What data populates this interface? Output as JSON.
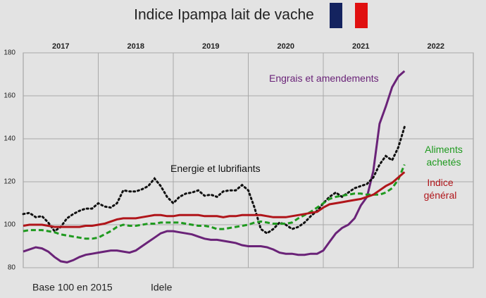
{
  "chart_data": {
    "type": "line",
    "title": "Indice Ipampa lait de vache",
    "notes": [
      "Base 100 en 2015",
      "Idele"
    ],
    "periods": [
      "2017",
      "2018",
      "2019",
      "2020",
      "2021",
      "2022"
    ],
    "x": [
      2017,
      2017.083,
      2017.167,
      2017.25,
      2017.333,
      2017.417,
      2017.5,
      2017.583,
      2017.667,
      2017.75,
      2017.833,
      2017.917,
      2018,
      2018.083,
      2018.167,
      2018.25,
      2018.333,
      2018.417,
      2018.5,
      2018.583,
      2018.667,
      2018.75,
      2018.833,
      2018.917,
      2019,
      2019.083,
      2019.167,
      2019.25,
      2019.333,
      2019.417,
      2019.5,
      2019.583,
      2019.667,
      2019.75,
      2019.833,
      2019.917,
      2020,
      2020.083,
      2020.167,
      2020.25,
      2020.333,
      2020.417,
      2020.5,
      2020.583,
      2020.667,
      2020.75,
      2020.833,
      2020.917,
      2021,
      2021.083,
      2021.167,
      2021.25,
      2021.333,
      2021.417,
      2021.5,
      2021.583,
      2021.667,
      2021.75,
      2021.833,
      2021.917,
      2022,
      2022.083
    ],
    "xlim": [
      2017,
      2023
    ],
    "xticks": [
      2018,
      2019,
      2020,
      2021,
      2022
    ],
    "ylim": [
      80,
      180
    ],
    "yticks": [
      80,
      100,
      120,
      140,
      160,
      180
    ],
    "grid": true,
    "series": [
      {
        "name": "Engrais et amendements",
        "color": "#6a2378",
        "dash": "solid",
        "values": [
          87.5,
          88.5,
          89.5,
          89,
          87.5,
          85,
          83,
          82.5,
          83.5,
          85,
          86,
          86.5,
          87,
          87.5,
          88,
          88,
          87.5,
          87,
          88,
          90,
          92,
          94,
          96,
          97,
          97,
          96.5,
          96,
          95.5,
          94.5,
          93.5,
          93,
          93,
          92.5,
          92,
          91.5,
          90.5,
          90,
          90,
          90,
          89.5,
          88.5,
          87,
          86.5,
          86.5,
          86,
          86,
          86.5,
          86.5,
          88,
          92,
          96,
          98.5,
          100,
          103,
          109,
          113,
          125,
          147,
          155,
          164,
          169,
          171.5
        ]
      },
      {
        "name": "Energie et lubrifiants",
        "color": "#111111",
        "dash": "dot",
        "values": [
          105,
          105.5,
          103.5,
          104,
          101,
          97,
          99,
          103,
          105,
          106.5,
          107.5,
          107.5,
          110,
          108.5,
          108,
          110,
          116,
          115.5,
          115.5,
          116.5,
          118,
          121.5,
          118,
          113,
          110,
          113,
          114.5,
          115,
          116,
          113.5,
          114,
          113,
          115.5,
          116,
          116,
          118.5,
          116,
          108,
          98,
          96,
          98,
          101,
          100,
          98,
          99,
          101,
          104,
          106.5,
          110,
          113,
          115,
          113,
          115,
          117,
          118,
          119,
          122,
          128,
          132,
          130,
          136,
          145.5
        ]
      },
      {
        "name": "Aliments achetés",
        "color": "#1f9a1f",
        "dash": "dash",
        "values": [
          97,
          97.5,
          97.5,
          97.5,
          97,
          96.5,
          95.5,
          95,
          94.5,
          94,
          93.5,
          93.5,
          94,
          95.5,
          97,
          99,
          100,
          99.5,
          99.5,
          100,
          100.5,
          100.5,
          101,
          101,
          101,
          101,
          100.5,
          100,
          99.5,
          99.5,
          99,
          98,
          98,
          98.5,
          99,
          99.5,
          100,
          101,
          101.5,
          101,
          100.5,
          100.5,
          100.5,
          101,
          103,
          104.5,
          106,
          108,
          110,
          112,
          113,
          113.5,
          114,
          114.5,
          114.5,
          114,
          114,
          114,
          115,
          117,
          121,
          128
        ]
      },
      {
        "name": "Indice général",
        "color": "#b0151a",
        "dash": "solid",
        "values": [
          99.5,
          100,
          100,
          100,
          99.5,
          99,
          99,
          99,
          99,
          99,
          99.5,
          99.5,
          100,
          100.5,
          101.5,
          102.5,
          103,
          103,
          103,
          103.5,
          104,
          104.5,
          104.5,
          104,
          104,
          104.5,
          104.5,
          104.5,
          104.5,
          104,
          104,
          104,
          103.5,
          104,
          104,
          104.5,
          104.5,
          104.5,
          104.5,
          104,
          103.5,
          103.5,
          103.5,
          104,
          104.5,
          105,
          105.5,
          106,
          108,
          109.5,
          110,
          110.5,
          111,
          111.5,
          112,
          113,
          114,
          116,
          118,
          119.5,
          122,
          124.5
        ]
      }
    ]
  }
}
